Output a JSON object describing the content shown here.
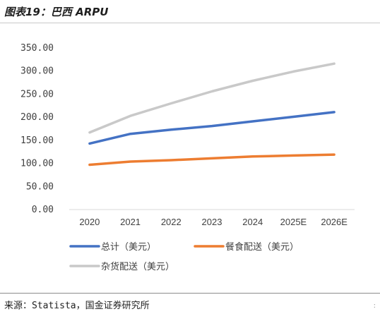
{
  "figure": {
    "title": "图表19：巴西 ARPU",
    "source": "来源：Statista，国金证券研究所",
    "corner_mark": ":"
  },
  "colors": {
    "total": "#4472c4",
    "food": "#ed7d31",
    "grocery": "#c9c9c9",
    "axis": "#d9d9d9"
  },
  "chart_data": {
    "type": "line",
    "categories": [
      "2020",
      "2021",
      "2022",
      "2023",
      "2024",
      "2025E",
      "2026E"
    ],
    "y_ticks": [
      "0.00",
      "50.00",
      "100.00",
      "150.00",
      "200.00",
      "250.00",
      "300.00",
      "350.00"
    ],
    "ylim": [
      0,
      350
    ],
    "grid": false,
    "legend_position": "bottom",
    "series": [
      {
        "name": "总计（美元）",
        "color_key": "total",
        "values": [
          143,
          164,
          173,
          181,
          191,
          201,
          211
        ]
      },
      {
        "name": "餐食配送（美元）",
        "color_key": "food",
        "values": [
          97,
          104,
          107,
          111,
          115,
          117,
          119
        ]
      },
      {
        "name": "杂货配送（美元）",
        "color_key": "grocery",
        "values": [
          167,
          203,
          230,
          256,
          279,
          299,
          316
        ]
      }
    ]
  }
}
